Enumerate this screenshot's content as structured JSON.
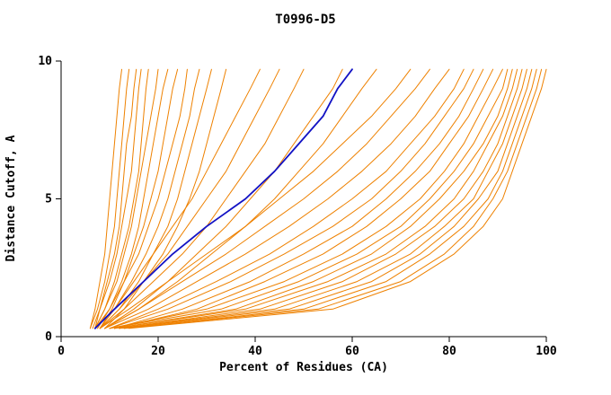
{
  "chart_data": {
    "type": "line",
    "title": "T0996-D5",
    "xlabel": "Percent of Residues (CA)",
    "ylabel": "Distance Cutoff, A",
    "xlim": [
      0,
      100
    ],
    "ylim": [
      0,
      10
    ],
    "x_ticks": [
      0,
      20,
      40,
      60,
      80,
      100
    ],
    "y_ticks": [
      0,
      5,
      10
    ],
    "grid": false,
    "legend": "none",
    "orange_color": "#ee8100",
    "highlight_color": "#1212c4",
    "cutoffs": [
      0.3,
      1,
      2,
      3,
      4,
      5,
      6,
      7,
      8,
      9,
      9.7
    ],
    "series_percents": [
      [
        6,
        7,
        8,
        9,
        9.5,
        10,
        10.5,
        11,
        11.5,
        12,
        12.5
      ],
      [
        6,
        7.5,
        9,
        10,
        11,
        11.5,
        12,
        12.5,
        13,
        13.5,
        14
      ],
      [
        7,
        8,
        9.5,
        11,
        12,
        12.5,
        13,
        13.5,
        14.5,
        15,
        15.5
      ],
      [
        6.5,
        8,
        10,
        11.5,
        12.5,
        13.5,
        14.5,
        15,
        15.5,
        16,
        16.5
      ],
      [
        7,
        9,
        11,
        12.5,
        14,
        15,
        16,
        16.5,
        17,
        17.5,
        18
      ],
      [
        7,
        9,
        11.5,
        13,
        14.5,
        15.5,
        16.5,
        17.5,
        18.5,
        19.5,
        20
      ],
      [
        7.5,
        10,
        12.5,
        14.5,
        16,
        17,
        18,
        19,
        20,
        21,
        22
      ],
      [
        8,
        10.5,
        13,
        15,
        17,
        18.5,
        20,
        21,
        22,
        23,
        24
      ],
      [
        7,
        10,
        13,
        16,
        18,
        20,
        21.5,
        23,
        24.5,
        25.5,
        26
      ],
      [
        8,
        11,
        14.5,
        17.5,
        20,
        22,
        23.5,
        25,
        26.5,
        27.5,
        28.5
      ],
      [
        8,
        12,
        16,
        19,
        22,
        24,
        25.5,
        27,
        28.5,
        30,
        31
      ],
      [
        9,
        13,
        17,
        21,
        24,
        26.5,
        28.5,
        30,
        31.5,
        33,
        34
      ],
      [
        7,
        11,
        15,
        19,
        23,
        27,
        30,
        33,
        36,
        39,
        41
      ],
      [
        8,
        12,
        17,
        22,
        26,
        30,
        34,
        37,
        40,
        43,
        45
      ],
      [
        8,
        13,
        19,
        25,
        30,
        34,
        38,
        42,
        45,
        48,
        50
      ],
      [
        9,
        15,
        22,
        28,
        34,
        39,
        44,
        48,
        52,
        56,
        58
      ],
      [
        9,
        16,
        24,
        31,
        38,
        44,
        49,
        54,
        58,
        62,
        65
      ],
      [
        8,
        14,
        22,
        30,
        38,
        45,
        52,
        58,
        64,
        69,
        72
      ],
      [
        9,
        16,
        25,
        34,
        42,
        50,
        57,
        63,
        68,
        73,
        76
      ],
      [
        9,
        18,
        28,
        38,
        47,
        55,
        62,
        68,
        73,
        77,
        80
      ],
      [
        10,
        20,
        32,
        43,
        52,
        60,
        67,
        72,
        77,
        81,
        83
      ],
      [
        10,
        22,
        35,
        46,
        56,
        64,
        70,
        75,
        79,
        83,
        85
      ],
      [
        11,
        25,
        39,
        50,
        60,
        67,
        73,
        78,
        82,
        85,
        87
      ],
      [
        11,
        28,
        42,
        54,
        63,
        70,
        76,
        80,
        84,
        87,
        89
      ],
      [
        10,
        30,
        46,
        58,
        67,
        74,
        79,
        83,
        86,
        89,
        91
      ],
      [
        10,
        33,
        49,
        61,
        70,
        76,
        81,
        85,
        88,
        91,
        92
      ],
      [
        11,
        36,
        52,
        64,
        72,
        78,
        83,
        87,
        90,
        92,
        93
      ],
      [
        11,
        38,
        55,
        67,
        75,
        81,
        85,
        88,
        91,
        93,
        94
      ],
      [
        12,
        41,
        58,
        69,
        77,
        83,
        87,
        90,
        92,
        94,
        95
      ],
      [
        12,
        44,
        61,
        72,
        79,
        85,
        88,
        91,
        93,
        95,
        96
      ],
      [
        12,
        47,
        64,
        74,
        81,
        86,
        90,
        92,
        94,
        96,
        97
      ],
      [
        13,
        50,
        67,
        76,
        83,
        88,
        91,
        93,
        95,
        97,
        98
      ],
      [
        13,
        53,
        70,
        79,
        85,
        89,
        92,
        94,
        96,
        98,
        99
      ],
      [
        14,
        56,
        72,
        81,
        87,
        91,
        93,
        95,
        97,
        99,
        100
      ]
    ],
    "highlight_percents": [
      7,
      11,
      17,
      23,
      30,
      38,
      44,
      49,
      54,
      57,
      60
    ]
  }
}
